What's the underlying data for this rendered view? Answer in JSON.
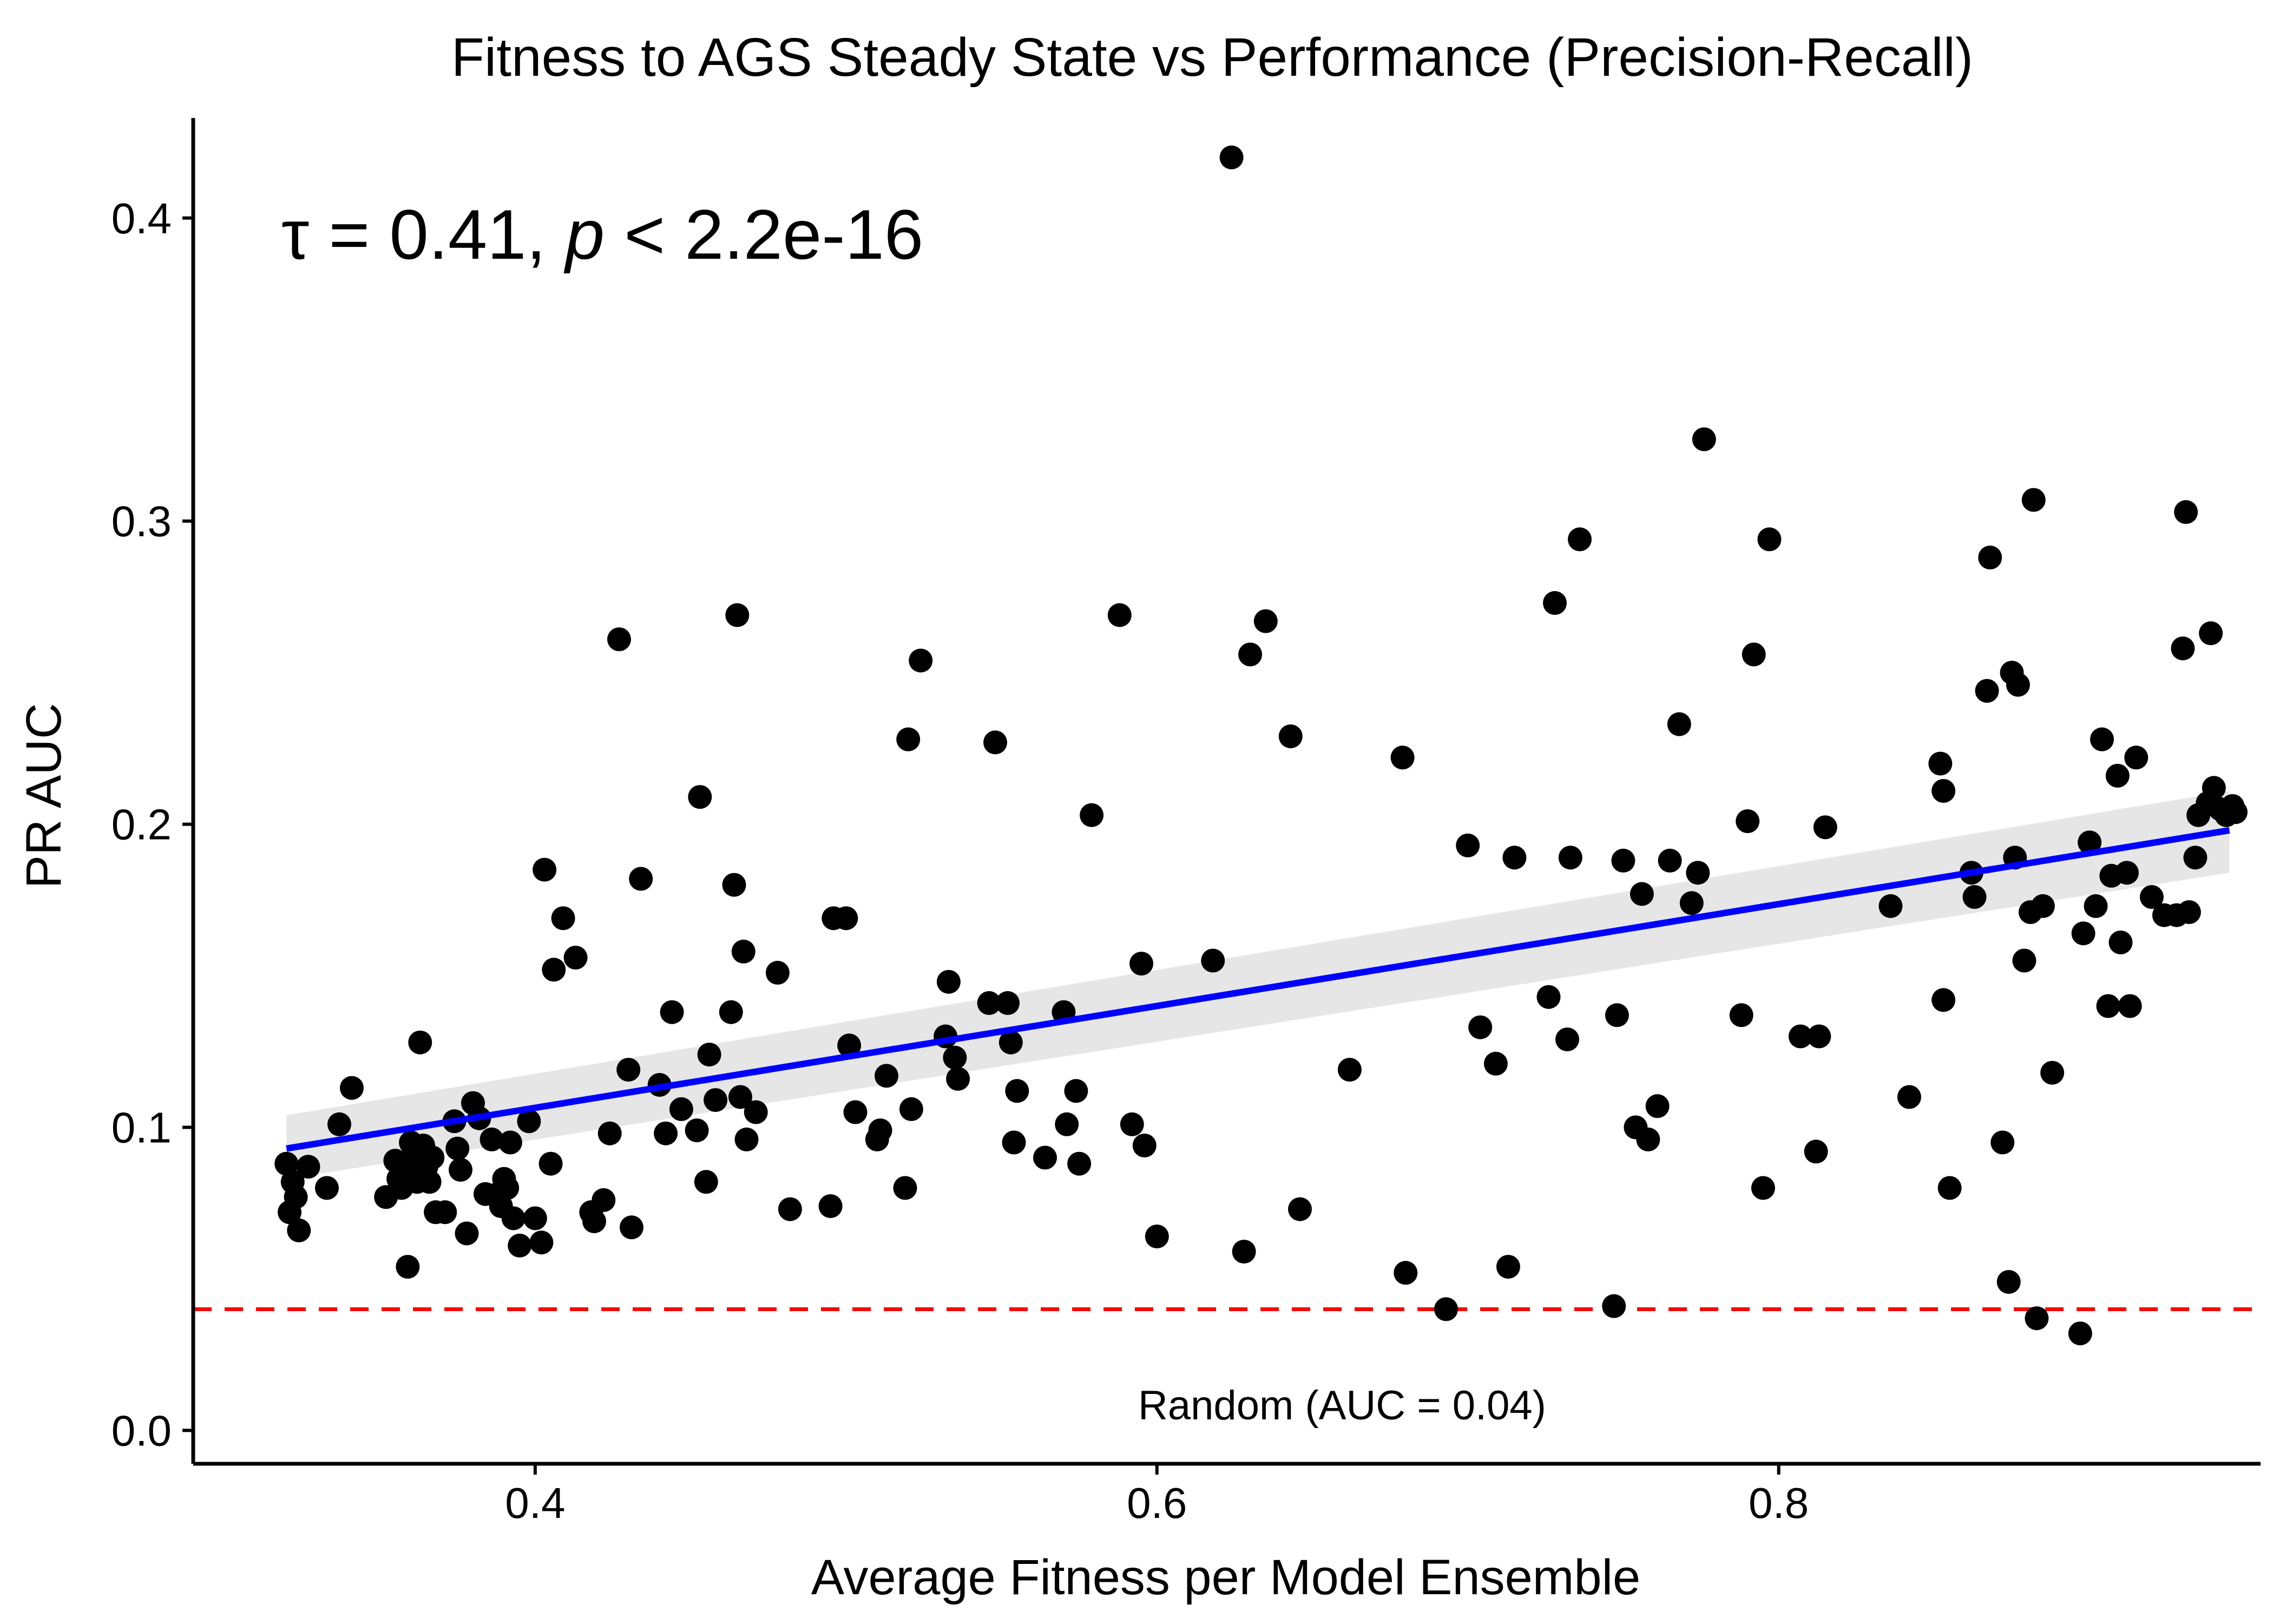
{
  "chart_data": {
    "type": "scatter",
    "title": "Fitness to AGS Steady State vs Performance (Precision-Recall)",
    "xlabel": "Average Fitness per Model Ensemble",
    "ylabel": "PR AUC",
    "xlim": [
      0.29,
      0.955
    ],
    "ylim": [
      -0.011,
      0.433
    ],
    "x_ticks": [
      0.4,
      0.6,
      0.8
    ],
    "x_tick_labels": [
      "0.4",
      "0.6",
      "0.8"
    ],
    "y_ticks": [
      0.0,
      0.1,
      0.2,
      0.3,
      0.4
    ],
    "y_tick_labels": [
      "0.0",
      "0.1",
      "0.2",
      "0.3",
      "0.4"
    ],
    "grid": false,
    "legend": "none",
    "annotation": {
      "tau_symbol": "τ",
      "eq": " = 0.41, ",
      "p_symbol": "p",
      "rest": " < 2.2e-16"
    },
    "reference_line": {
      "y": 0.04,
      "label": "Random (AUC = 0.04)",
      "color": "#ff0000",
      "style": "dashed"
    },
    "trend_line": {
      "method": "linear fit",
      "x_start": 0.32,
      "y_start": 0.093,
      "x_end": 0.945,
      "y_end": 0.198,
      "ci_start": [
        0.083,
        0.104
      ],
      "ci_end": [
        0.184,
        0.211
      ],
      "color": "#0000ff",
      "band_color": "#e6e6e6"
    },
    "point_color": "#000000",
    "points": [
      [
        0.32,
        0.088
      ],
      [
        0.321,
        0.072
      ],
      [
        0.322,
        0.082
      ],
      [
        0.323,
        0.077
      ],
      [
        0.324,
        0.066
      ],
      [
        0.327,
        0.087
      ],
      [
        0.333,
        0.08
      ],
      [
        0.337,
        0.101
      ],
      [
        0.341,
        0.113
      ],
      [
        0.352,
        0.077
      ],
      [
        0.355,
        0.089
      ],
      [
        0.356,
        0.083
      ],
      [
        0.357,
        0.08
      ],
      [
        0.358,
        0.085
      ],
      [
        0.359,
        0.054
      ],
      [
        0.36,
        0.095
      ],
      [
        0.361,
        0.091
      ],
      [
        0.362,
        0.082
      ],
      [
        0.363,
        0.128
      ],
      [
        0.364,
        0.094
      ],
      [
        0.365,
        0.087
      ],
      [
        0.366,
        0.082
      ],
      [
        0.367,
        0.09
      ],
      [
        0.368,
        0.072
      ],
      [
        0.371,
        0.072
      ],
      [
        0.374,
        0.102
      ],
      [
        0.375,
        0.093
      ],
      [
        0.376,
        0.086
      ],
      [
        0.378,
        0.065
      ],
      [
        0.38,
        0.108
      ],
      [
        0.382,
        0.103
      ],
      [
        0.384,
        0.078
      ],
      [
        0.386,
        0.096
      ],
      [
        0.388,
        0.078
      ],
      [
        0.389,
        0.074
      ],
      [
        0.39,
        0.083
      ],
      [
        0.391,
        0.08
      ],
      [
        0.392,
        0.095
      ],
      [
        0.393,
        0.07
      ],
      [
        0.395,
        0.061
      ],
      [
        0.398,
        0.102
      ],
      [
        0.4,
        0.07
      ],
      [
        0.402,
        0.062
      ],
      [
        0.403,
        0.185
      ],
      [
        0.405,
        0.088
      ],
      [
        0.406,
        0.152
      ],
      [
        0.409,
        0.169
      ],
      [
        0.413,
        0.156
      ],
      [
        0.418,
        0.072
      ],
      [
        0.419,
        0.069
      ],
      [
        0.422,
        0.076
      ],
      [
        0.424,
        0.098
      ],
      [
        0.427,
        0.261
      ],
      [
        0.43,
        0.119
      ],
      [
        0.431,
        0.067
      ],
      [
        0.434,
        0.182
      ],
      [
        0.44,
        0.114
      ],
      [
        0.442,
        0.098
      ],
      [
        0.444,
        0.138
      ],
      [
        0.447,
        0.106
      ],
      [
        0.452,
        0.099
      ],
      [
        0.453,
        0.209
      ],
      [
        0.455,
        0.082
      ],
      [
        0.456,
        0.124
      ],
      [
        0.458,
        0.109
      ],
      [
        0.463,
        0.138
      ],
      [
        0.464,
        0.18
      ],
      [
        0.465,
        0.269
      ],
      [
        0.466,
        0.11
      ],
      [
        0.467,
        0.158
      ],
      [
        0.468,
        0.096
      ],
      [
        0.471,
        0.105
      ],
      [
        0.478,
        0.151
      ],
      [
        0.482,
        0.073
      ],
      [
        0.495,
        0.074
      ],
      [
        0.496,
        0.169
      ],
      [
        0.5,
        0.169
      ],
      [
        0.501,
        0.127
      ],
      [
        0.503,
        0.105
      ],
      [
        0.51,
        0.096
      ],
      [
        0.511,
        0.099
      ],
      [
        0.513,
        0.117
      ],
      [
        0.519,
        0.08
      ],
      [
        0.52,
        0.228
      ],
      [
        0.521,
        0.106
      ],
      [
        0.524,
        0.254
      ],
      [
        0.532,
        0.13
      ],
      [
        0.533,
        0.148
      ],
      [
        0.535,
        0.123
      ],
      [
        0.536,
        0.116
      ],
      [
        0.546,
        0.141
      ],
      [
        0.548,
        0.227
      ],
      [
        0.552,
        0.141
      ],
      [
        0.553,
        0.128
      ],
      [
        0.554,
        0.095
      ],
      [
        0.555,
        0.112
      ],
      [
        0.564,
        0.09
      ],
      [
        0.57,
        0.138
      ],
      [
        0.571,
        0.101
      ],
      [
        0.574,
        0.112
      ],
      [
        0.575,
        0.088
      ],
      [
        0.579,
        0.203
      ],
      [
        0.588,
        0.269
      ],
      [
        0.592,
        0.101
      ],
      [
        0.595,
        0.154
      ],
      [
        0.596,
        0.094
      ],
      [
        0.6,
        0.064
      ],
      [
        0.618,
        0.155
      ],
      [
        0.624,
        0.42
      ],
      [
        0.628,
        0.059
      ],
      [
        0.63,
        0.256
      ],
      [
        0.635,
        0.267
      ],
      [
        0.643,
        0.229
      ],
      [
        0.646,
        0.073
      ],
      [
        0.662,
        0.119
      ],
      [
        0.679,
        0.222
      ],
      [
        0.68,
        0.052
      ],
      [
        0.693,
        0.04
      ],
      [
        0.7,
        0.193
      ],
      [
        0.704,
        0.133
      ],
      [
        0.709,
        0.121
      ],
      [
        0.713,
        0.054
      ],
      [
        0.715,
        0.189
      ],
      [
        0.726,
        0.143
      ],
      [
        0.728,
        0.273
      ],
      [
        0.732,
        0.129
      ],
      [
        0.733,
        0.189
      ],
      [
        0.736,
        0.294
      ],
      [
        0.747,
        0.041
      ],
      [
        0.748,
        0.137
      ],
      [
        0.75,
        0.188
      ],
      [
        0.754,
        0.1
      ],
      [
        0.756,
        0.177
      ],
      [
        0.758,
        0.096
      ],
      [
        0.761,
        0.107
      ],
      [
        0.765,
        0.188
      ],
      [
        0.768,
        0.233
      ],
      [
        0.772,
        0.174
      ],
      [
        0.774,
        0.184
      ],
      [
        0.776,
        0.327
      ],
      [
        0.788,
        0.137
      ],
      [
        0.79,
        0.201
      ],
      [
        0.792,
        0.256
      ],
      [
        0.795,
        0.08
      ],
      [
        0.797,
        0.294
      ],
      [
        0.807,
        0.13
      ],
      [
        0.812,
        0.092
      ],
      [
        0.813,
        0.13
      ],
      [
        0.815,
        0.199
      ],
      [
        0.836,
        0.173
      ],
      [
        0.842,
        0.11
      ],
      [
        0.852,
        0.22
      ],
      [
        0.853,
        0.211
      ],
      [
        0.853,
        0.142
      ],
      [
        0.855,
        0.08
      ],
      [
        0.862,
        0.184
      ],
      [
        0.863,
        0.176
      ],
      [
        0.867,
        0.244
      ],
      [
        0.868,
        0.288
      ],
      [
        0.872,
        0.095
      ],
      [
        0.874,
        0.049
      ],
      [
        0.875,
        0.25
      ],
      [
        0.876,
        0.189
      ],
      [
        0.877,
        0.246
      ],
      [
        0.879,
        0.155
      ],
      [
        0.881,
        0.171
      ],
      [
        0.882,
        0.307
      ],
      [
        0.883,
        0.037
      ],
      [
        0.885,
        0.173
      ],
      [
        0.888,
        0.118
      ],
      [
        0.897,
        0.032
      ],
      [
        0.898,
        0.164
      ],
      [
        0.9,
        0.194
      ],
      [
        0.902,
        0.173
      ],
      [
        0.904,
        0.228
      ],
      [
        0.906,
        0.14
      ],
      [
        0.907,
        0.183
      ],
      [
        0.909,
        0.216
      ],
      [
        0.91,
        0.161
      ],
      [
        0.912,
        0.184
      ],
      [
        0.913,
        0.14
      ],
      [
        0.915,
        0.222
      ],
      [
        0.92,
        0.176
      ],
      [
        0.924,
        0.17
      ],
      [
        0.928,
        0.17
      ],
      [
        0.93,
        0.258
      ],
      [
        0.931,
        0.303
      ],
      [
        0.932,
        0.171
      ],
      [
        0.934,
        0.189
      ],
      [
        0.935,
        0.203
      ],
      [
        0.938,
        0.207
      ],
      [
        0.939,
        0.263
      ],
      [
        0.94,
        0.212
      ],
      [
        0.942,
        0.205
      ],
      [
        0.944,
        0.203
      ],
      [
        0.946,
        0.206
      ],
      [
        0.947,
        0.204
      ]
    ]
  }
}
